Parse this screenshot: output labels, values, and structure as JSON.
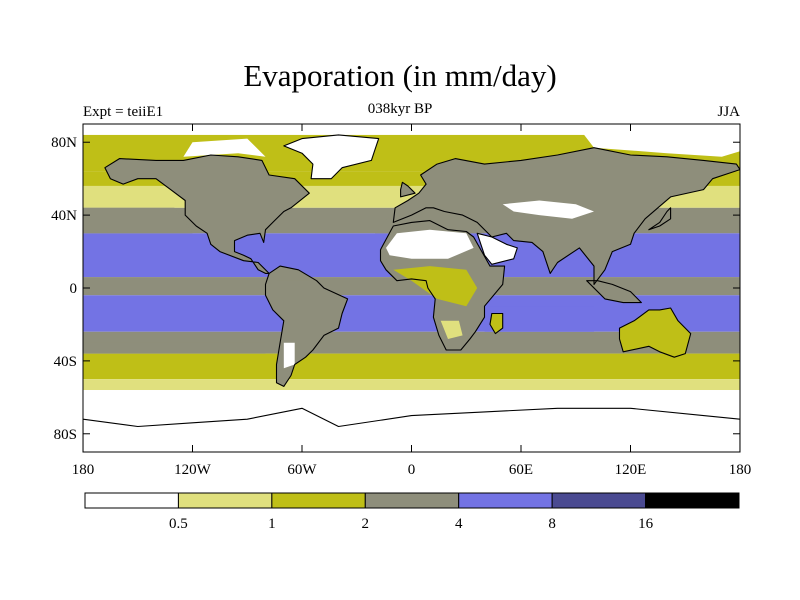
{
  "title": "Evaporation (in mm/day)",
  "subtitle": "038kyr BP",
  "left_string": "Expt = teiiE1",
  "right_string": "JJA",
  "map": {
    "projection": "cylindrical-equidistant",
    "lon_range": [
      -180,
      180
    ],
    "lat_range": [
      -90,
      90
    ],
    "lat_ticks": [
      {
        "lat": 80,
        "label": "80N"
      },
      {
        "lat": 40,
        "label": "40N"
      },
      {
        "lat": 0,
        "label": "0"
      },
      {
        "lat": -40,
        "label": "40S"
      },
      {
        "lat": -80,
        "label": "80S"
      }
    ],
    "lon_ticks": [
      {
        "lon": -180,
        "label": "180"
      },
      {
        "lon": -120,
        "label": "120W"
      },
      {
        "lon": -60,
        "label": "60W"
      },
      {
        "lon": 0,
        "label": "0"
      },
      {
        "lon": 60,
        "label": "60E"
      },
      {
        "lon": 120,
        "label": "120E"
      },
      {
        "lon": 180,
        "label": "180"
      }
    ]
  },
  "colorbar": {
    "colors": [
      "#ffffff",
      "#e0e07e",
      "#bfbf17",
      "#8e8e7b",
      "#7373e4",
      "#4a4a91",
      "#000000"
    ],
    "labels": [
      "0.5",
      "1",
      "2",
      "4",
      "8",
      "16"
    ]
  },
  "colors": {
    "land_white": "#ffffff",
    "coastline": "#000000"
  }
}
